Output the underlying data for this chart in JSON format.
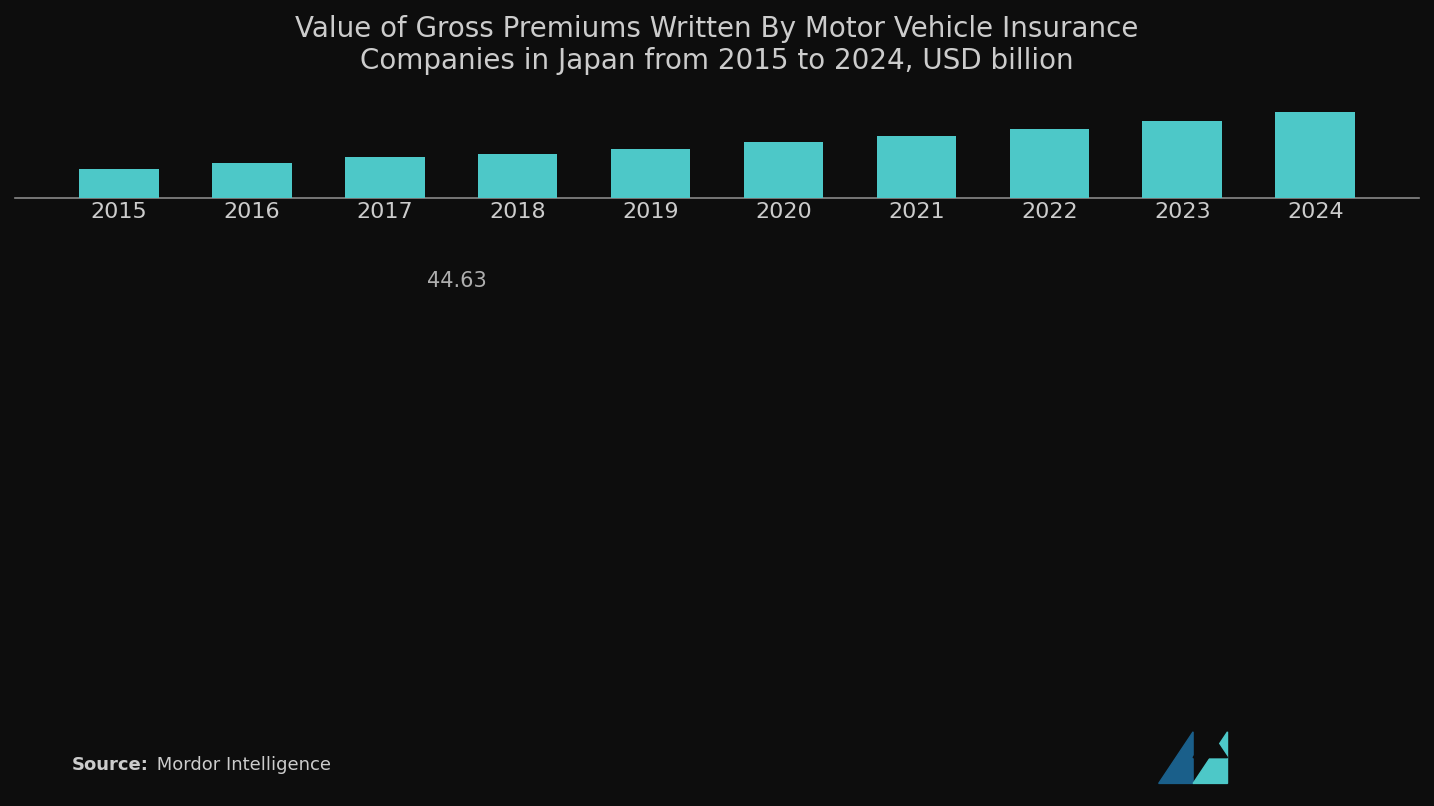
{
  "title": "Value of Gross Premiums Written By Motor Vehicle Insurance\nCompanies in Japan from 2015 to 2024, USD billion",
  "years": [
    "2015",
    "2016",
    "2017",
    "2018",
    "2019",
    "2020",
    "2021",
    "2022",
    "2023",
    "2024"
  ],
  "values": [
    42.5,
    43.6,
    44.63,
    45.2,
    46.1,
    47.3,
    48.5,
    49.8,
    51.2,
    52.8
  ],
  "bar_color": "#4DC8C8",
  "background_color": "#0d0d0d",
  "text_color": "#cccccc",
  "annotation_text": "44.63",
  "annotation_year_index": 2,
  "source_bold": "Source:",
  "source_text": " Mordor Intelligence",
  "title_fontsize": 20,
  "tick_fontsize": 16,
  "annotation_fontsize": 15,
  "source_fontsize": 13
}
